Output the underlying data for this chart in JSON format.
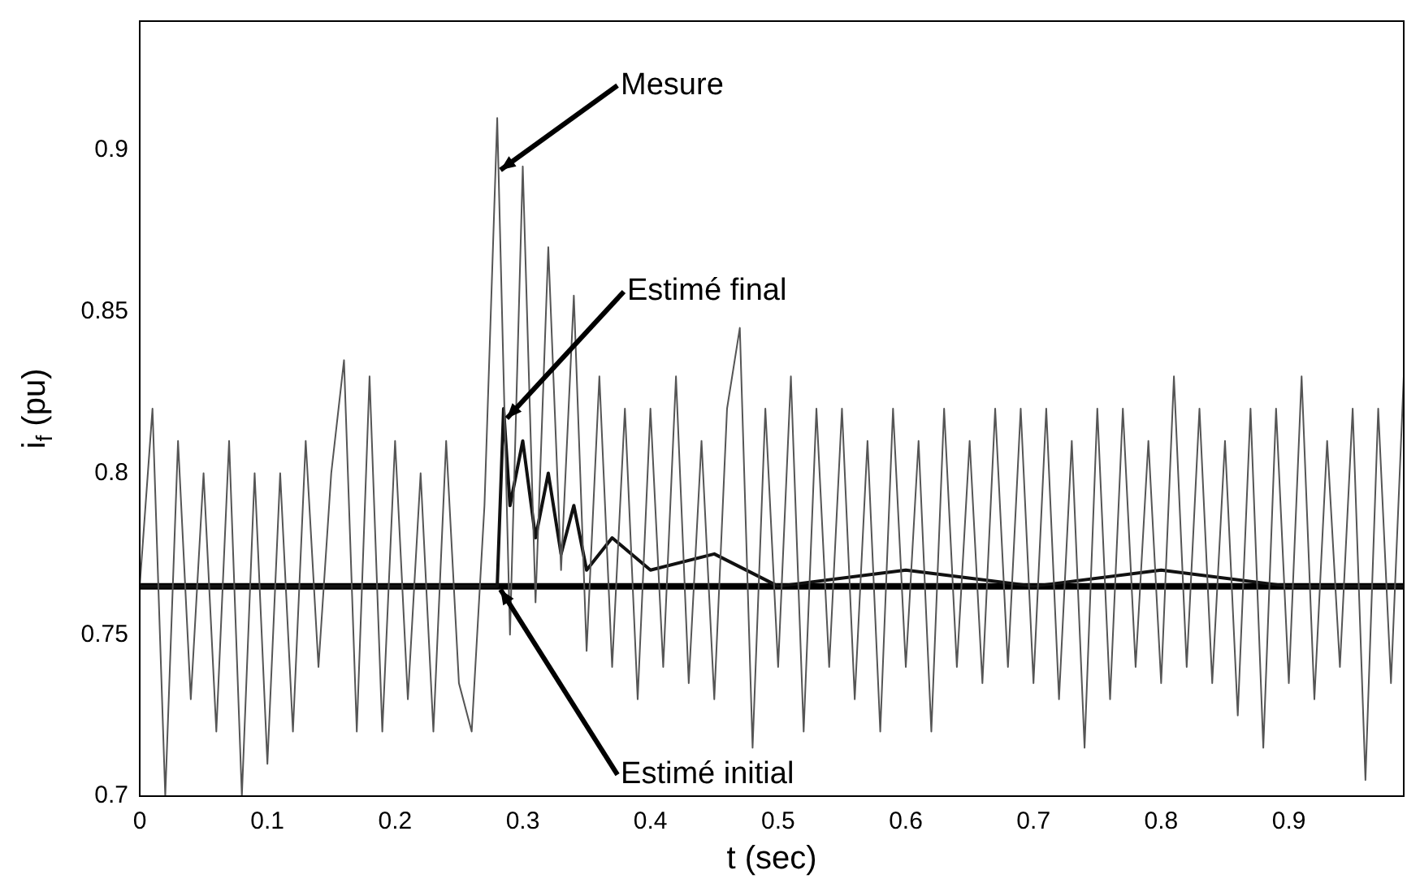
{
  "chart_data": {
    "type": "line",
    "xlabel": "t (sec)",
    "ylabel": "i$_{f}$ (pu)",
    "xlim": [
      0,
      0.99
    ],
    "ylim": [
      0.7,
      0.94
    ],
    "xticks": [
      0,
      0.1,
      0.2,
      0.3,
      0.4,
      0.5,
      0.6,
      0.7,
      0.8,
      0.9
    ],
    "yticks": [
      0.7,
      0.75,
      0.8,
      0.85,
      0.9
    ],
    "grid": false,
    "legend": false,
    "marker": "none",
    "series": [
      {
        "name": "Mesure",
        "color": "#555555",
        "x": [
          0,
          0.01,
          0.02,
          0.03,
          0.04,
          0.05,
          0.06,
          0.07,
          0.08,
          0.09,
          0.1,
          0.11,
          0.12,
          0.13,
          0.14,
          0.15,
          0.16,
          0.17,
          0.18,
          0.19,
          0.2,
          0.21,
          0.22,
          0.23,
          0.24,
          0.25,
          0.26,
          0.27,
          0.28,
          0.29,
          0.3,
          0.31,
          0.32,
          0.33,
          0.34,
          0.35,
          0.36,
          0.37,
          0.38,
          0.39,
          0.4,
          0.41,
          0.42,
          0.43,
          0.44,
          0.45,
          0.46,
          0.47,
          0.48,
          0.49,
          0.5,
          0.51,
          0.52,
          0.53,
          0.54,
          0.55,
          0.56,
          0.57,
          0.58,
          0.59,
          0.6,
          0.61,
          0.62,
          0.63,
          0.64,
          0.65,
          0.66,
          0.67,
          0.68,
          0.69,
          0.7,
          0.71,
          0.72,
          0.73,
          0.74,
          0.75,
          0.76,
          0.77,
          0.78,
          0.79,
          0.8,
          0.81,
          0.82,
          0.83,
          0.84,
          0.85,
          0.86,
          0.87,
          0.88,
          0.89,
          0.9,
          0.91,
          0.92,
          0.93,
          0.94,
          0.95,
          0.96,
          0.97,
          0.98,
          0.99
        ],
        "values": [
          0.765,
          0.82,
          0.7,
          0.81,
          0.73,
          0.8,
          0.72,
          0.81,
          0.7,
          0.8,
          0.71,
          0.8,
          0.72,
          0.81,
          0.74,
          0.8,
          0.835,
          0.72,
          0.83,
          0.72,
          0.81,
          0.73,
          0.8,
          0.72,
          0.81,
          0.735,
          0.72,
          0.79,
          0.91,
          0.75,
          0.895,
          0.76,
          0.87,
          0.77,
          0.855,
          0.745,
          0.83,
          0.74,
          0.82,
          0.73,
          0.82,
          0.74,
          0.83,
          0.735,
          0.81,
          0.73,
          0.82,
          0.845,
          0.715,
          0.82,
          0.74,
          0.83,
          0.72,
          0.82,
          0.74,
          0.82,
          0.73,
          0.81,
          0.72,
          0.82,
          0.74,
          0.81,
          0.72,
          0.82,
          0.74,
          0.81,
          0.735,
          0.82,
          0.74,
          0.82,
          0.735,
          0.82,
          0.73,
          0.81,
          0.715,
          0.82,
          0.73,
          0.82,
          0.74,
          0.81,
          0.735,
          0.83,
          0.74,
          0.82,
          0.735,
          0.81,
          0.725,
          0.82,
          0.715,
          0.82,
          0.735,
          0.83,
          0.73,
          0.81,
          0.74,
          0.82,
          0.705,
          0.82,
          0.735,
          0.83
        ]
      },
      {
        "name": "Estimé final",
        "color": "#111111",
        "x": [
          0,
          0.28,
          0.285,
          0.29,
          0.3,
          0.31,
          0.32,
          0.33,
          0.34,
          0.35,
          0.37,
          0.4,
          0.45,
          0.5,
          0.6,
          0.7,
          0.8,
          0.9,
          0.99
        ],
        "values": [
          0.765,
          0.765,
          0.82,
          0.79,
          0.81,
          0.78,
          0.8,
          0.775,
          0.79,
          0.77,
          0.78,
          0.77,
          0.775,
          0.765,
          0.77,
          0.765,
          0.77,
          0.765,
          0.765
        ]
      },
      {
        "name": "Estimé initial",
        "color": "#000000",
        "x": [
          0,
          0.99
        ],
        "values": [
          0.765,
          0.765
        ]
      }
    ]
  }
}
